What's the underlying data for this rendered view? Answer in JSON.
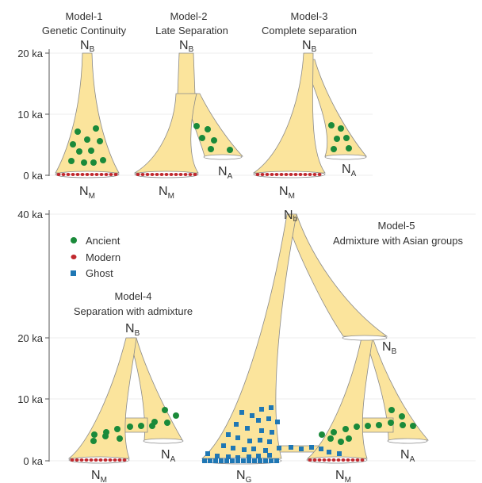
{
  "top_axis": {
    "ticks": [
      "20 ka",
      "10 ka",
      "0 ka"
    ]
  },
  "bottom_axis": {
    "ticks": [
      "40 ka",
      "20 ka",
      "10 ka",
      "0 ka"
    ]
  },
  "models": [
    {
      "title": "Model-1",
      "subtitle": "Genetic Continuity",
      "nodes": [
        {
          "main": "N",
          "sub": "B"
        },
        {
          "main": "N",
          "sub": "M"
        }
      ]
    },
    {
      "title": "Model-2",
      "subtitle": "Late Separation",
      "nodes": [
        {
          "main": "N",
          "sub": "B"
        },
        {
          "main": "N",
          "sub": "M"
        },
        {
          "main": "N",
          "sub": "A"
        }
      ]
    },
    {
      "title": "Model-3",
      "subtitle": "Complete separation",
      "nodes": [
        {
          "main": "N",
          "sub": "B"
        },
        {
          "main": "N",
          "sub": "M"
        },
        {
          "main": "N",
          "sub": "A"
        }
      ]
    },
    {
      "title": "Model-4",
      "subtitle": "Separation with admixture",
      "nodes": [
        {
          "main": "N",
          "sub": "B"
        },
        {
          "main": "N",
          "sub": "M"
        },
        {
          "main": "N",
          "sub": "A"
        }
      ]
    },
    {
      "title": "Model-5",
      "subtitle": "Admixture with Asian groups",
      "nodes": [
        {
          "main": "N",
          "sub": "b"
        },
        {
          "main": "N",
          "sub": "B"
        },
        {
          "main": "N",
          "sub": "G"
        },
        {
          "main": "N",
          "sub": "M"
        },
        {
          "main": "N",
          "sub": "A"
        }
      ]
    }
  ],
  "legend": [
    "Ancient",
    "Modern",
    "Ghost"
  ]
}
